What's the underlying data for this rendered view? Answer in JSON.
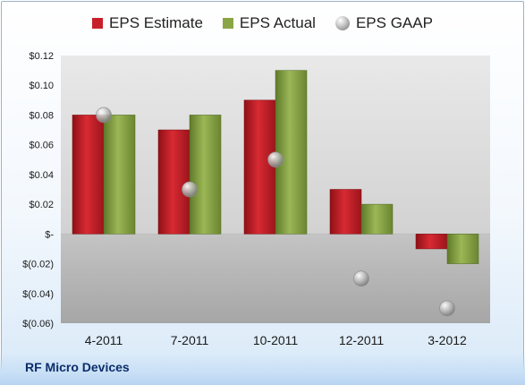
{
  "chart_data": {
    "type": "bar",
    "categories": [
      "4-2011",
      "7-2011",
      "10-2011",
      "12-2011",
      "3-2012"
    ],
    "series": [
      {
        "name": "EPS Estimate",
        "values": [
          0.08,
          0.07,
          0.09,
          0.03,
          -0.01
        ],
        "color": "#c8202a"
      },
      {
        "name": "EPS Actual",
        "values": [
          0.08,
          0.08,
          0.11,
          0.02,
          -0.02
        ],
        "color": "#8aa644"
      },
      {
        "name": "EPS GAAP",
        "values": [
          0.08,
          0.03,
          0.05,
          -0.03,
          -0.05
        ],
        "color": "#a8a8a8",
        "style": "marker"
      }
    ],
    "yticks": [
      "$0.12",
      "$0.10",
      "$0.08",
      "$0.06",
      "$0.04",
      "$0.02",
      "$-",
      "$(0.02)",
      "$(0.04)",
      "$(0.06)"
    ],
    "ylim": [
      -0.06,
      0.12
    ],
    "legend_position": "top",
    "grid": false
  },
  "legend": {
    "estimate": "EPS Estimate",
    "actual": "EPS Actual",
    "gaap": "EPS GAAP"
  },
  "footer": {
    "company": "RF Micro Devices"
  }
}
